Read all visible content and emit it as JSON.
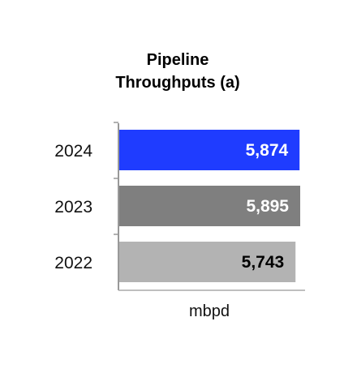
{
  "chart_data": {
    "type": "bar",
    "orientation": "horizontal",
    "title": [
      "Pipeline",
      "Throughputs (a)"
    ],
    "categories": [
      "2024",
      "2023",
      "2022"
    ],
    "values": [
      5874,
      5895,
      5743
    ],
    "value_labels": [
      "5,874",
      "5,895",
      "5,743"
    ],
    "bar_colors": [
      "#1f3cff",
      "#7f7f7f",
      "#b3b3b3"
    ],
    "label_colors": [
      "#ffffff",
      "#ffffff",
      "#000000"
    ],
    "xlabel": "mbpd",
    "ylabel": "",
    "grid": false,
    "legend": "none"
  }
}
